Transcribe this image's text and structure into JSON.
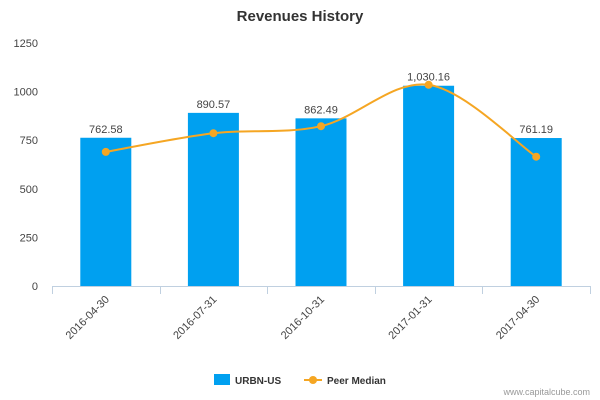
{
  "chart_data": {
    "type": "bar",
    "title": "Revenues History",
    "categories": [
      "2016-04-30",
      "2016-07-31",
      "2016-10-31",
      "2017-01-31",
      "2017-04-30"
    ],
    "series": [
      {
        "name": "URBN-US",
        "type": "bar",
        "values": [
          762.58,
          890.57,
          862.49,
          1030.16,
          761.19
        ],
        "labels": [
          "762.58",
          "890.57",
          "862.49",
          "1,030.16",
          "761.19"
        ],
        "color": "#00a0f0"
      },
      {
        "name": "Peer Median",
        "type": "line",
        "values": [
          690,
          786,
          822,
          1035,
          665
        ],
        "color": "#f5a623"
      }
    ],
    "ylim": [
      0,
      1250
    ],
    "yticks": [
      0,
      250,
      500,
      750,
      1000,
      1250
    ],
    "grid": false,
    "legend": "bottom-center"
  },
  "credit": "www.capitalcube.com"
}
